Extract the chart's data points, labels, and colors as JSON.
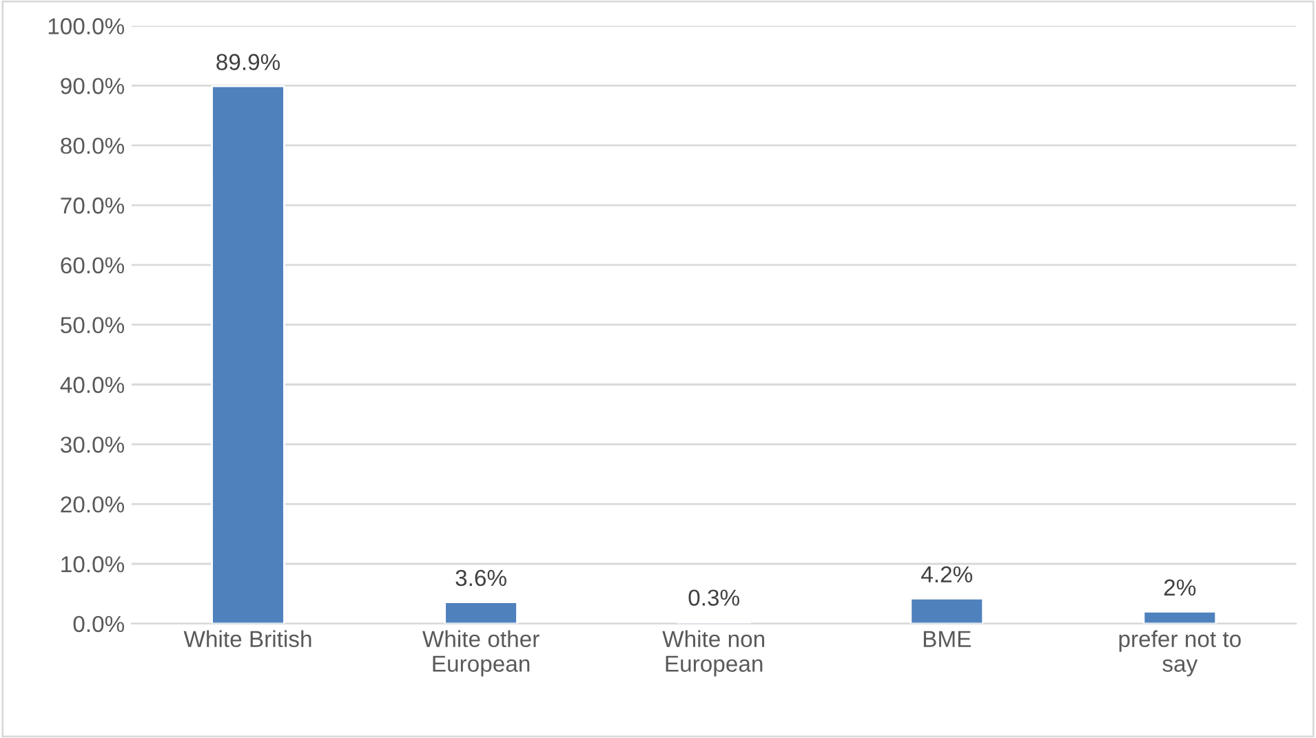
{
  "chart_data": {
    "type": "bar",
    "categories": [
      "White British",
      "White other\nEuropean",
      "White non\nEuropean",
      "BME",
      "prefer not to\nsay"
    ],
    "values": [
      89.9,
      3.6,
      0.3,
      4.2,
      2
    ],
    "value_labels": [
      "89.9%",
      "3.6%",
      "0.3%",
      "4.2%",
      "2%"
    ],
    "color": "#4f81bd",
    "ylim": [
      0,
      100
    ],
    "yticks": [
      {
        "value": 0,
        "label": "0.0%"
      },
      {
        "value": 10,
        "label": "10.0%"
      },
      {
        "value": 20,
        "label": "20.0%"
      },
      {
        "value": 30,
        "label": "30.0%"
      },
      {
        "value": 40,
        "label": "40.0%"
      },
      {
        "value": 50,
        "label": "50.0%"
      },
      {
        "value": 60,
        "label": "60.0%"
      },
      {
        "value": 70,
        "label": "70.0%"
      },
      {
        "value": 80,
        "label": "80.0%"
      },
      {
        "value": 90,
        "label": "90.0%"
      },
      {
        "value": 100,
        "label": "100.0%"
      }
    ],
    "grid": "y",
    "legend": false
  }
}
